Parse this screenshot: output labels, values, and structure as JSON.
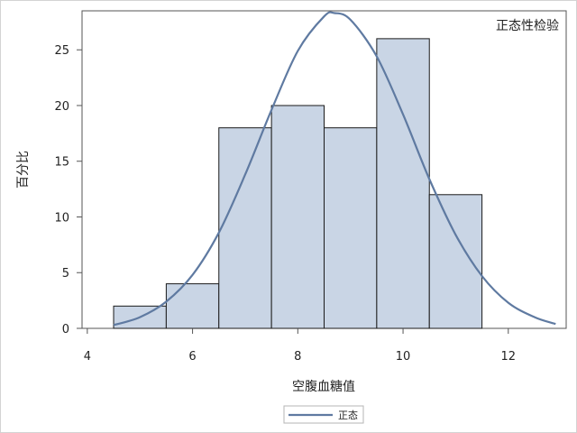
{
  "chart_data": {
    "type": "bar",
    "subtype": "histogram",
    "inset_title": "正态性检验",
    "xlabel": "空腹血糖值",
    "ylabel": "百分比",
    "xlim": [
      3.9,
      13.1
    ],
    "ylim": [
      0,
      28.5
    ],
    "xticks": [
      4,
      6,
      8,
      10,
      12
    ],
    "yticks": [
      0,
      5,
      10,
      15,
      20,
      25
    ],
    "bins": [
      {
        "x0": 4.5,
        "x1": 5.5,
        "value": 2
      },
      {
        "x0": 5.5,
        "x1": 6.5,
        "value": 4
      },
      {
        "x0": 6.5,
        "x1": 7.5,
        "value": 18
      },
      {
        "x0": 7.5,
        "x1": 8.5,
        "value": 20
      },
      {
        "x0": 8.5,
        "x1": 9.5,
        "value": 18
      },
      {
        "x0": 9.5,
        "x1": 10.5,
        "value": 26
      },
      {
        "x0": 10.5,
        "x1": 11.5,
        "value": 12
      }
    ],
    "normal_curve": {
      "name": "正态",
      "x": [
        4.5,
        5.0,
        5.5,
        6.0,
        6.5,
        7.0,
        7.5,
        8.0,
        8.5,
        8.7,
        9.0,
        9.5,
        10.0,
        10.5,
        11.0,
        11.5,
        12.0,
        12.5,
        12.9
      ],
      "y": [
        0.3,
        1.0,
        2.4,
        4.8,
        8.6,
        13.8,
        19.6,
        24.9,
        28.0,
        28.3,
        27.7,
        24.4,
        19.2,
        13.4,
        8.4,
        4.7,
        2.3,
        1.0,
        0.4
      ]
    },
    "legend": [
      {
        "label": "正态",
        "color": "#5f7aa1"
      }
    ],
    "legend_position": "bottom",
    "grid": false
  },
  "colors": {
    "bar_fill": "#c9d5e5",
    "bar_stroke": "#1a1a1a",
    "curve": "#5f7aa1",
    "axis": "#555555"
  }
}
